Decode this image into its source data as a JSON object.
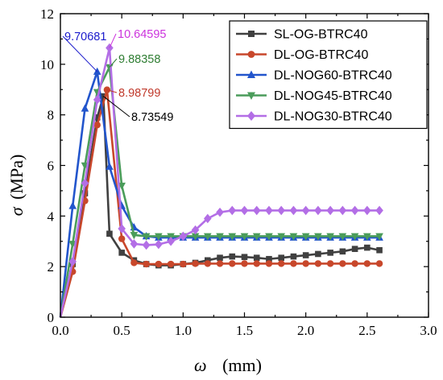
{
  "chart_data": {
    "type": "line",
    "xlabel_symbol": "ω",
    "xlabel_unit": "(mm)",
    "ylabel_symbol": "σ",
    "ylabel_unit": "(MPa)",
    "xlim": [
      0.0,
      3.0
    ],
    "ylim": [
      0,
      12
    ],
    "xticks": [
      0.0,
      0.5,
      1.0,
      1.5,
      2.0,
      2.5,
      3.0
    ],
    "xtick_labels": [
      "0.0",
      "0.5",
      "1.0",
      "1.5",
      "2.0",
      "2.5",
      "3.0"
    ],
    "yticks": [
      0,
      2,
      4,
      6,
      8,
      10,
      12
    ],
    "ytick_labels": [
      "0",
      "2",
      "4",
      "6",
      "8",
      "10",
      "12"
    ],
    "grid": false,
    "legend_position": "top-right",
    "series": [
      {
        "name": "SL-OG-BTRC40",
        "color": "#404040",
        "marker": "square",
        "x": [
          0.0,
          0.1,
          0.2,
          0.3,
          0.35,
          0.4,
          0.5,
          0.6,
          0.7,
          0.8,
          0.9,
          1.0,
          1.1,
          1.2,
          1.3,
          1.4,
          1.5,
          1.6,
          1.7,
          1.8,
          1.9,
          2.0,
          2.1,
          2.2,
          2.3,
          2.4,
          2.5,
          2.6
        ],
        "y": [
          0.0,
          2.1,
          4.9,
          7.9,
          8.73549,
          3.3,
          2.55,
          2.25,
          2.1,
          2.05,
          2.05,
          2.1,
          2.15,
          2.25,
          2.35,
          2.4,
          2.38,
          2.35,
          2.3,
          2.35,
          2.4,
          2.45,
          2.5,
          2.55,
          2.6,
          2.7,
          2.75,
          2.65
        ]
      },
      {
        "name": "DL-OG-BTRC40",
        "color": "#c8472b",
        "marker": "circle",
        "x": [
          0.0,
          0.1,
          0.2,
          0.3,
          0.38,
          0.5,
          0.6,
          0.7,
          0.8,
          0.9,
          1.0,
          1.1,
          1.2,
          1.3,
          1.4,
          1.5,
          1.6,
          1.7,
          1.8,
          1.9,
          2.0,
          2.1,
          2.2,
          2.3,
          2.4,
          2.5,
          2.6
        ],
        "y": [
          0.0,
          1.8,
          4.6,
          7.6,
          8.98799,
          3.1,
          2.15,
          2.1,
          2.1,
          2.1,
          2.1,
          2.12,
          2.12,
          2.12,
          2.12,
          2.12,
          2.12,
          2.12,
          2.12,
          2.12,
          2.12,
          2.12,
          2.12,
          2.12,
          2.12,
          2.12,
          2.12
        ]
      },
      {
        "name": "DL-NOG60-BTRC40",
        "color": "#2255cc",
        "marker": "triangle-up",
        "x": [
          0.0,
          0.1,
          0.2,
          0.3,
          0.4,
          0.5,
          0.6,
          0.7,
          0.8,
          0.9,
          1.0,
          1.1,
          1.2,
          1.3,
          1.4,
          1.5,
          1.6,
          1.7,
          1.8,
          1.9,
          2.0,
          2.1,
          2.2,
          2.3,
          2.4,
          2.5,
          2.6
        ],
        "y": [
          0.0,
          4.4,
          8.25,
          9.70681,
          5.95,
          4.4,
          3.55,
          3.2,
          3.15,
          3.15,
          3.15,
          3.15,
          3.15,
          3.15,
          3.15,
          3.15,
          3.15,
          3.15,
          3.15,
          3.15,
          3.15,
          3.15,
          3.15,
          3.15,
          3.15,
          3.15,
          3.15
        ]
      },
      {
        "name": "DL-NOG45-BTRC40",
        "color": "#4a9c5a",
        "marker": "triangle-down",
        "x": [
          0.0,
          0.1,
          0.2,
          0.3,
          0.4,
          0.5,
          0.6,
          0.7,
          0.8,
          0.9,
          1.0,
          1.1,
          1.2,
          1.3,
          1.4,
          1.5,
          1.6,
          1.7,
          1.8,
          1.9,
          2.0,
          2.1,
          2.2,
          2.3,
          2.4,
          2.5,
          2.6
        ],
        "y": [
          0.0,
          2.9,
          6.0,
          8.9,
          9.88358,
          5.2,
          3.25,
          3.2,
          3.2,
          3.2,
          3.2,
          3.2,
          3.2,
          3.2,
          3.2,
          3.2,
          3.2,
          3.2,
          3.2,
          3.2,
          3.2,
          3.2,
          3.2,
          3.2,
          3.2,
          3.2,
          3.2
        ]
      },
      {
        "name": "DL-NOG30-BTRC40",
        "color": "#b36ee6",
        "marker": "diamond",
        "x": [
          0.0,
          0.1,
          0.2,
          0.3,
          0.4,
          0.5,
          0.6,
          0.7,
          0.8,
          0.9,
          1.0,
          1.1,
          1.2,
          1.3,
          1.4,
          1.5,
          1.6,
          1.7,
          1.8,
          1.9,
          2.0,
          2.1,
          2.2,
          2.3,
          2.4,
          2.5,
          2.6
        ],
        "y": [
          0.0,
          2.2,
          5.3,
          8.6,
          10.64595,
          3.5,
          2.9,
          2.85,
          2.88,
          3.0,
          3.2,
          3.45,
          3.9,
          4.15,
          4.22,
          4.22,
          4.22,
          4.22,
          4.22,
          4.22,
          4.22,
          4.22,
          4.22,
          4.22,
          4.22,
          4.22,
          4.22
        ]
      }
    ],
    "annotations": [
      {
        "text": "9.70681",
        "series": "DL-NOG60-BTRC40",
        "color": "#1a1acc"
      },
      {
        "text": "10.64595",
        "series": "DL-NOG30-BTRC40",
        "color": "#cc33dd"
      },
      {
        "text": "9.88358",
        "series": "DL-NOG45-BTRC40",
        "color": "#2e7d32"
      },
      {
        "text": "8.98799",
        "series": "DL-OG-BTRC40",
        "color": "#c0392b"
      },
      {
        "text": "8.73549",
        "series": "SL-OG-BTRC40",
        "color": "#000000"
      }
    ]
  }
}
